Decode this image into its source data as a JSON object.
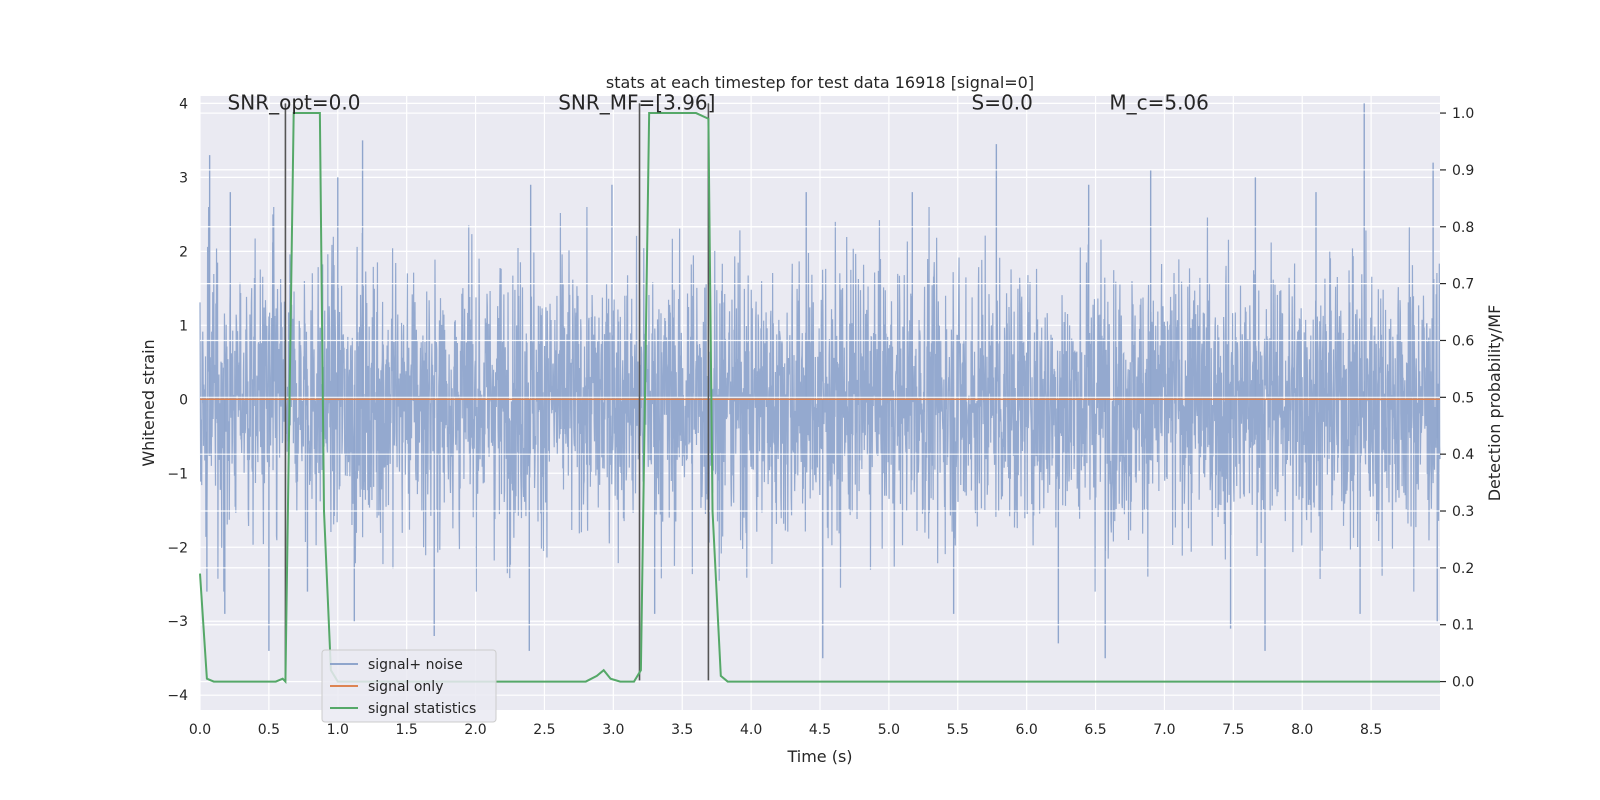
{
  "chart_data": {
    "type": "line",
    "title": "stats at each timestep for test data 16918 [signal=0]",
    "xlabel": "Time (s)",
    "ylabel": "Whitened strain",
    "ylabel_right": "Detection probability/MF",
    "xlim": [
      0,
      9.0
    ],
    "ylim": [
      -4.2,
      4.1
    ],
    "ylim_right": [
      -0.05,
      1.03
    ],
    "x_ticks": [
      0.0,
      0.5,
      1.0,
      1.5,
      2.0,
      2.5,
      3.0,
      3.5,
      4.0,
      4.5,
      5.0,
      5.5,
      6.0,
      6.5,
      7.0,
      7.5,
      8.0,
      8.5
    ],
    "x_tick_labels": [
      "0.0",
      "0.5",
      "1.0",
      "1.5",
      "2.0",
      "2.5",
      "3.0",
      "3.5",
      "4.0",
      "4.5",
      "5.0",
      "5.5",
      "6.0",
      "6.5",
      "7.0",
      "7.5",
      "8.0",
      "8.5"
    ],
    "y_ticks": [
      4,
      3,
      2,
      1,
      0,
      -1,
      -2,
      -3,
      -4
    ],
    "y_tick_labels": [
      "4",
      "3",
      "2",
      "1",
      "0",
      "−1",
      "−2",
      "−3",
      "−4"
    ],
    "y_right_ticks": [
      1.0,
      0.9,
      0.8,
      0.7,
      0.6,
      0.5,
      0.4,
      0.3,
      0.2,
      0.1,
      0.0
    ],
    "y_right_tick_labels": [
      "1.0",
      "0.9",
      "0.8",
      "0.7",
      "0.6",
      "0.5",
      "0.4",
      "0.3",
      "0.2",
      "0.1",
      "0.0"
    ],
    "grid": true,
    "legend_position": "lower-left",
    "annotations": [
      {
        "text": "SNR_opt=0.0",
        "x": 0.2,
        "y": 4.0
      },
      {
        "text": "SNR_MF=[3.96]",
        "x": 2.6,
        "y": 4.0
      },
      {
        "text": "S=0.0",
        "x": 5.6,
        "y": 4.0
      },
      {
        "text": "M_c=5.06",
        "x": 6.6,
        "y": 4.0
      }
    ],
    "vlines": [
      {
        "x": 0.62,
        "ymin": -3.8,
        "ymax": 4.0
      },
      {
        "x": 3.19,
        "ymin": -3.8,
        "ymax": 4.0
      },
      {
        "x": 3.69,
        "ymin": -3.8,
        "ymax": 4.0
      }
    ],
    "series": [
      {
        "name": "signal+ noise",
        "color": "#8fa5cc",
        "axis": "left",
        "description": "noise-like whitened strain, about 4000 samples between -3.5 and 4.0",
        "peaks_x": [
          0.07,
          0.22,
          0.53,
          1.0,
          1.18,
          2.4,
          2.99,
          4.4,
          5.17,
          5.78,
          6.45,
          6.9,
          7.66,
          8.1,
          8.45,
          8.95
        ],
        "peaks_y": [
          3.3,
          2.8,
          2.5,
          3.0,
          3.5,
          2.9,
          2.9,
          2.8,
          2.8,
          3.45,
          2.9,
          3.1,
          3.0,
          2.8,
          4.0,
          3.2
        ],
        "troughs_x": [
          0.05,
          0.18,
          0.5,
          0.78,
          1.12,
          1.7,
          2.39,
          3.3,
          4.52,
          5.47,
          6.23,
          6.57,
          7.48,
          7.73,
          8.42,
          8.98
        ],
        "troughs_y": [
          -2.6,
          -2.9,
          -3.4,
          -2.6,
          -3.0,
          -3.2,
          -3.4,
          -2.9,
          -3.5,
          -2.9,
          -3.3,
          -3.5,
          -3.1,
          -3.4,
          -2.9,
          -3.0
        ]
      },
      {
        "name": "signal only",
        "color": "#dd8452",
        "axis": "left",
        "x": [
          0.0,
          9.0
        ],
        "y": [
          0.0,
          0.0
        ]
      },
      {
        "name": "signal statistics",
        "color": "#55a868",
        "axis": "right",
        "x": [
          0.0,
          0.05,
          0.1,
          0.15,
          0.55,
          0.6,
          0.62,
          0.68,
          0.87,
          0.9,
          0.95,
          1.0,
          2.8,
          2.88,
          2.93,
          2.98,
          3.05,
          3.15,
          3.2,
          3.26,
          3.32,
          3.35,
          3.6,
          3.69,
          3.72,
          3.78,
          3.83,
          9.0
        ],
        "y": [
          0.19,
          0.005,
          0.0,
          0.0,
          0.0,
          0.005,
          0.0,
          1.0,
          1.0,
          0.3,
          0.02,
          0.0,
          0.0,
          0.01,
          0.02,
          0.005,
          0.0,
          0.0,
          0.02,
          1.0,
          1.0,
          1.0,
          1.0,
          0.99,
          0.3,
          0.01,
          0.0,
          0.0
        ]
      }
    ]
  }
}
